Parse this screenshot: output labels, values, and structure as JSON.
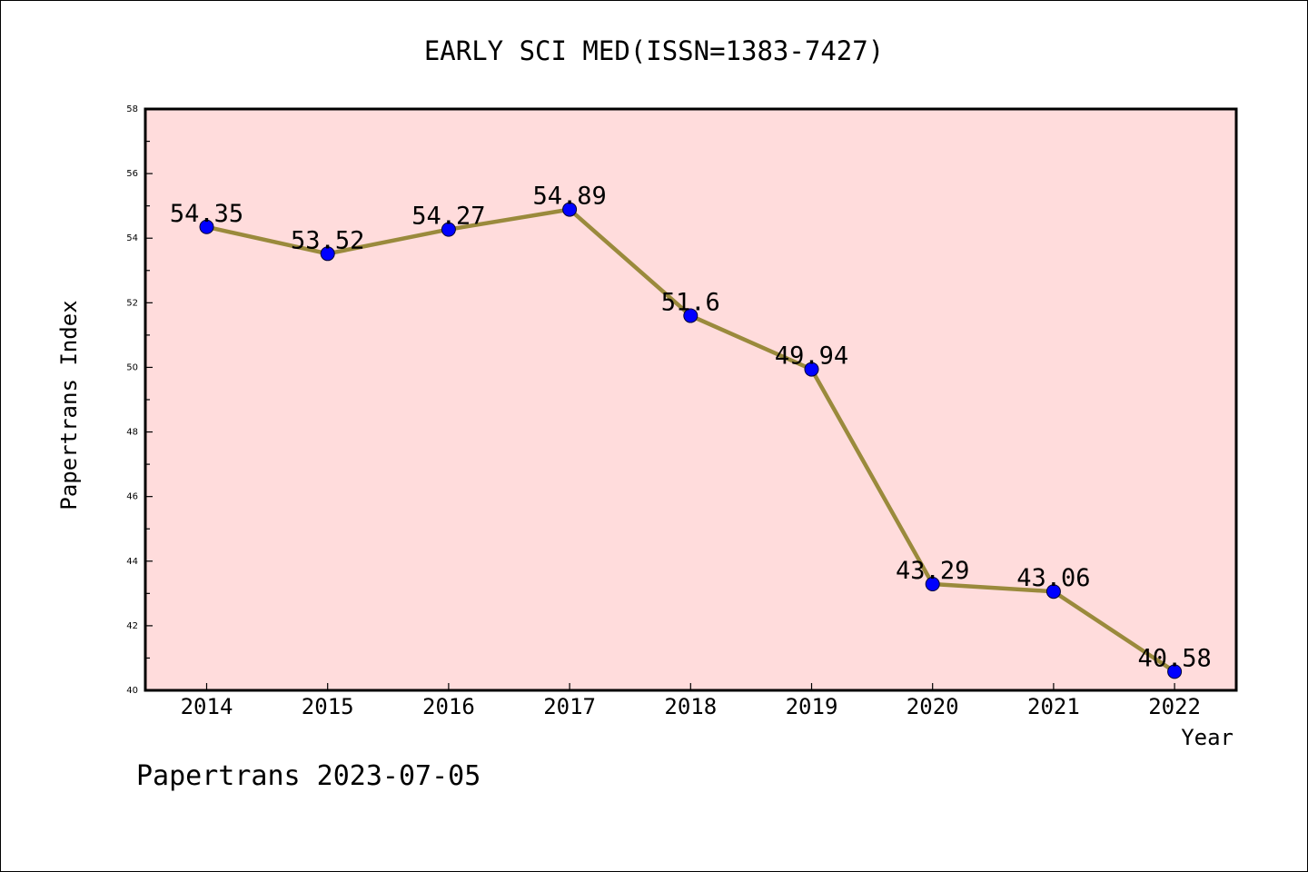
{
  "chart_data": {
    "type": "line",
    "title": "EARLY SCI MED(ISSN=1383-7427)",
    "xlabel": "Year",
    "ylabel": "Papertrans Index",
    "categories": [
      "2014",
      "2015",
      "2016",
      "2017",
      "2018",
      "2019",
      "2020",
      "2021",
      "2022"
    ],
    "series": [
      {
        "values": [
          54.35,
          53.52,
          54.27,
          54.89,
          51.6,
          49.94,
          43.29,
          43.06,
          40.58
        ],
        "labels": [
          "54.35",
          "53.52",
          "54.27",
          "54.89",
          "51.6",
          "49.94",
          "43.29",
          "43.06",
          "40.58"
        ]
      }
    ],
    "ylim": [
      40,
      58
    ],
    "yticks": [
      "40",
      "42",
      "44",
      "46",
      "48",
      "50",
      "52",
      "54",
      "56",
      "58"
    ],
    "grid": false,
    "plot_background": "#ffdcdc",
    "line_color": "#9a8a3c",
    "marker_color": "#0000ff"
  },
  "footer": {
    "watermark": "Papertrans 2023-07-05"
  }
}
